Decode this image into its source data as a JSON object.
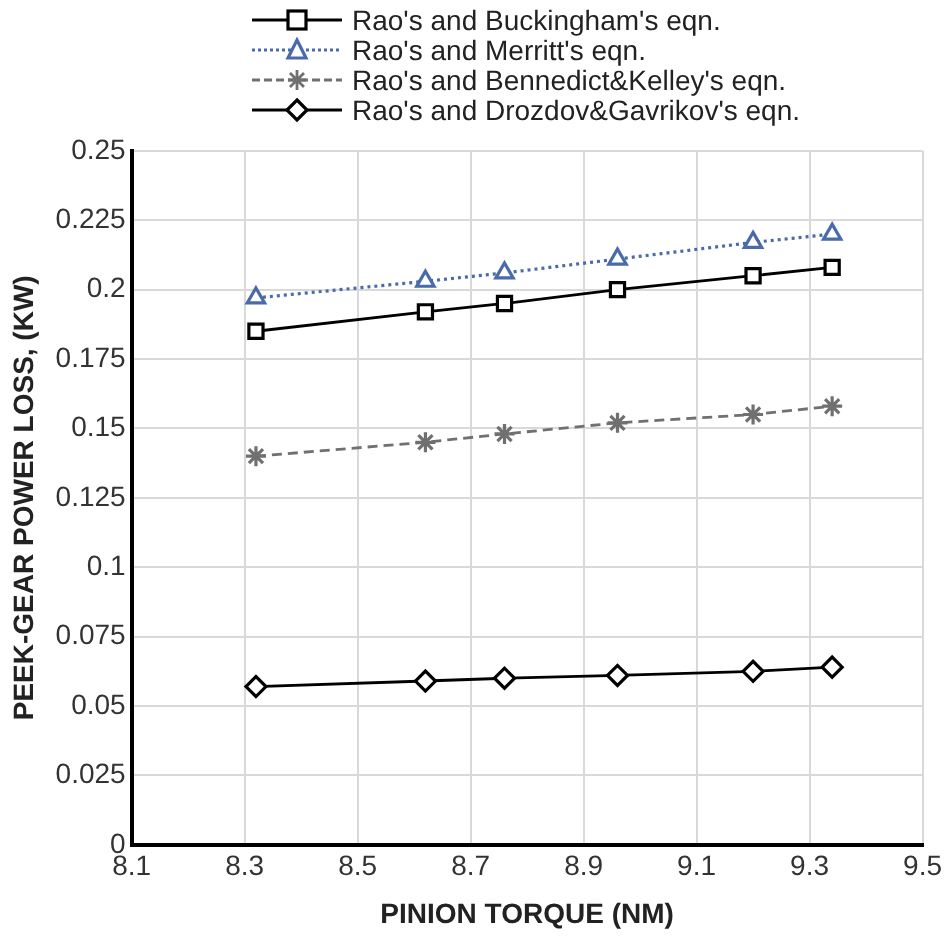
{
  "chart_data": {
    "type": "line",
    "xlabel": "PINION TORQUE (NM)",
    "ylabel": "PEEK-GEAR POWER LOSS, (KW)",
    "x": [
      8.32,
      8.62,
      8.76,
      8.96,
      9.2,
      9.34
    ],
    "xlim": [
      8.1,
      9.5
    ],
    "xticks": [
      8.1,
      8.3,
      8.5,
      8.7,
      8.9,
      9.1,
      9.3,
      9.5
    ],
    "ylim": [
      0,
      0.25
    ],
    "yticks": [
      0,
      0.025,
      0.05,
      0.075,
      0.1,
      0.125,
      0.15,
      0.175,
      0.2,
      0.225,
      0.25
    ],
    "grid": true,
    "legend": "top",
    "series": [
      {
        "name": "Rao's and Buckingham's eqn.",
        "color": "#000000",
        "marker": "square",
        "line_style": "solid",
        "values": [
          0.185,
          0.192,
          0.195,
          0.2,
          0.205,
          0.208
        ]
      },
      {
        "name": "Rao's and Merritt's eqn.",
        "color": "#4a6aaa",
        "marker": "triangle",
        "line_style": "dotted",
        "values": [
          0.197,
          0.203,
          0.206,
          0.211,
          0.217,
          0.22
        ]
      },
      {
        "name": "Rao's and Bennedict&Kelley's eqn.",
        "color": "#707070",
        "marker": "cross",
        "line_style": "dashed",
        "values": [
          0.14,
          0.145,
          0.148,
          0.152,
          0.155,
          0.158
        ]
      },
      {
        "name": "Rao's and Drozdov&Gavrikov's eqn.",
        "color": "#000000",
        "marker": "diamond",
        "line_style": "solid",
        "values": [
          0.057,
          0.059,
          0.06,
          0.061,
          0.0625,
          0.064
        ]
      }
    ]
  }
}
